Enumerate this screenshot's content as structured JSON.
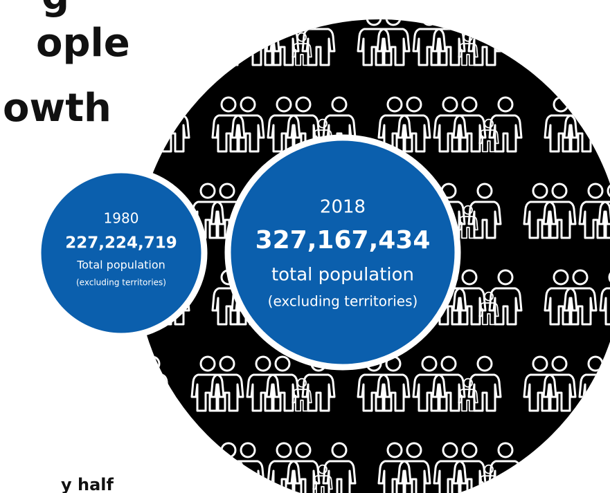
{
  "title_fragments": [
    "g",
    "ople",
    "owth"
  ],
  "footer_fragment": "y half",
  "circle_1980": {
    "year": "1980",
    "population": "227,224,719",
    "label": "Total population",
    "note": "(excluding territories)"
  },
  "circle_2018": {
    "year": "2018",
    "population": "327,167,434",
    "label": "total population",
    "note": "(excluding territories)"
  }
}
